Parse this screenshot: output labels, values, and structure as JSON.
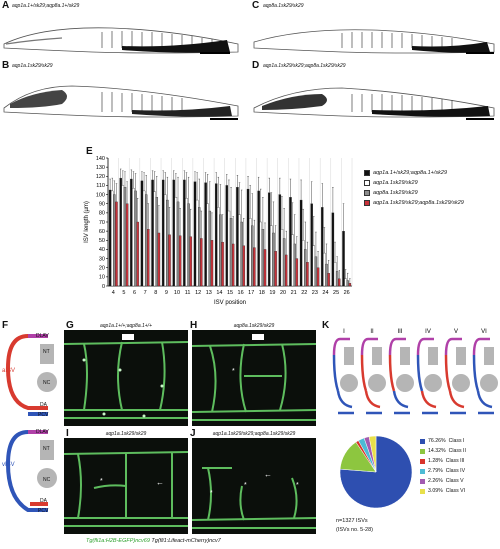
{
  "panels": {
    "A": {
      "letter": "A",
      "caption": "aqp1a.1+/sk29;aqp8a.1+/sk29"
    },
    "B": {
      "letter": "B",
      "caption": "aqp1a.1sk29/sk29"
    },
    "C": {
      "letter": "C",
      "caption": "aqp8a.1sk29/sk29"
    },
    "D": {
      "letter": "D",
      "caption": "aqp1a.1sk29/sk29;aqp8a.1sk29/sk29"
    }
  },
  "panelE": {
    "letter": "E"
  },
  "panelF": {
    "letter": "F",
    "top_labels": [
      "DLAV",
      "NT",
      "NC",
      "DA",
      "PCV"
    ],
    "top_vessel": "aISV",
    "bottom_labels": [
      "DLAV",
      "NT",
      "NC",
      "DA",
      "PCV"
    ],
    "bottom_vessel": "vISV",
    "colors": {
      "artery": "#d83a2f",
      "vein": "#2f55b8",
      "dlav": "#b040a8",
      "structure": "#b5b5b5"
    }
  },
  "panelG": {
    "letter": "G",
    "caption": "aqp1a.1+/+;aqp8a.1+/+"
  },
  "panelH": {
    "letter": "H",
    "caption": "aqp8a.1sk29/sk29"
  },
  "panelI": {
    "letter": "I",
    "caption": "aqp1a.1sk29/sk29"
  },
  "panelJ": {
    "letter": "J",
    "caption": "aqp1a.1sk29/sk29;aqp8a.1sk29/sk29"
  },
  "micro_footer": {
    "part1": "Tg(fli1a:H2B-EGFP)ncv69",
    "part2": " Tg(fli1:Lifeact-mCherry)ncv7"
  },
  "panelK": {
    "letter": "K",
    "class_labels": [
      "I",
      "II",
      "III",
      "IV",
      "V",
      "VI"
    ],
    "pie_legend": [
      {
        "pct": "76.26%",
        "label": "Class I",
        "color": "#2e4fb0",
        "value": 76.26
      },
      {
        "pct": "14.32%",
        "label": "Class II",
        "color": "#8dc63f",
        "value": 14.32
      },
      {
        "pct": "1.28%",
        "label": "Class III",
        "color": "#d9342b",
        "value": 1.28
      },
      {
        "pct": "2.79%",
        "label": "Class IV",
        "color": "#4dbbd5",
        "value": 2.79
      },
      {
        "pct": "2.26%",
        "label": "Class V",
        "color": "#a25ab0",
        "value": 2.26
      },
      {
        "pct": "3.09%",
        "label": "Class VI",
        "color": "#e8e04a",
        "value": 3.09
      }
    ],
    "n_text": "n=1327 ISVs",
    "isv_text": "(ISVs no. 5-28)"
  },
  "chart_data": {
    "type": "bar",
    "xlabel": "ISV position",
    "ylabel": "ISV length (µm)",
    "ylim": [
      0,
      140
    ],
    "yticks": [
      0,
      10,
      20,
      30,
      40,
      50,
      60,
      70,
      80,
      90,
      100,
      110,
      120,
      130,
      140
    ],
    "categories": [
      "4",
      "5",
      "6",
      "7",
      "8",
      "9",
      "10",
      "11",
      "12",
      "13",
      "14",
      "15",
      "16",
      "17",
      "18",
      "19",
      "20",
      "21",
      "22",
      "23",
      "24",
      "25",
      "26"
    ],
    "series": [
      {
        "name": "aqp1a.1+/sk29;aqp8a.1+/sk29",
        "color": "#111111",
        "values": [
          105,
          118,
          117,
          115,
          116,
          116,
          116,
          116,
          114,
          113,
          112,
          110,
          108,
          106,
          104,
          102,
          100,
          97,
          94,
          90,
          86,
          80,
          60
        ],
        "errors": [
          12,
          10,
          10,
          10,
          10,
          10,
          10,
          10,
          11,
          11,
          12,
          12,
          13,
          14,
          15,
          16,
          18,
          20,
          22,
          24,
          26,
          28,
          30
        ]
      },
      {
        "name": "aqp1a.1sk29/sk29",
        "color": "#ffffff",
        "values": [
          104,
          110,
          107,
          104,
          103,
          100,
          97,
          96,
          94,
          90,
          86,
          82,
          78,
          74,
          70,
          66,
          62,
          56,
          50,
          44,
          36,
          26,
          8
        ],
        "errors": [
          14,
          16,
          18,
          20,
          22,
          24,
          26,
          28,
          30,
          32,
          33,
          34,
          35,
          36,
          36,
          36,
          36,
          35,
          34,
          32,
          28,
          22,
          10
        ]
      },
      {
        "name": "aqp8a.1sk29/sk29",
        "color": "#8c8c8c",
        "values": [
          100,
          108,
          104,
          100,
          97,
          94,
          92,
          90,
          86,
          82,
          78,
          74,
          70,
          66,
          62,
          58,
          52,
          46,
          40,
          32,
          24,
          16,
          6
        ],
        "errors": [
          15,
          17,
          19,
          21,
          23,
          25,
          27,
          29,
          31,
          32,
          33,
          34,
          35,
          35,
          35,
          34,
          33,
          32,
          30,
          27,
          22,
          16,
          8
        ]
      },
      {
        "name": "aqp1a.1sk29/sk29;aqp8a.1sk29/sk29",
        "color": "#c8323a",
        "values": [
          92,
          90,
          70,
          62,
          58,
          56,
          55,
          54,
          52,
          50,
          48,
          46,
          44,
          42,
          40,
          38,
          34,
          30,
          26,
          20,
          14,
          8,
          3
        ],
        "errors": [
          20,
          24,
          26,
          28,
          30,
          30,
          30,
          30,
          30,
          30,
          30,
          30,
          30,
          30,
          29,
          28,
          26,
          24,
          22,
          18,
          14,
          9,
          5
        ]
      }
    ]
  }
}
